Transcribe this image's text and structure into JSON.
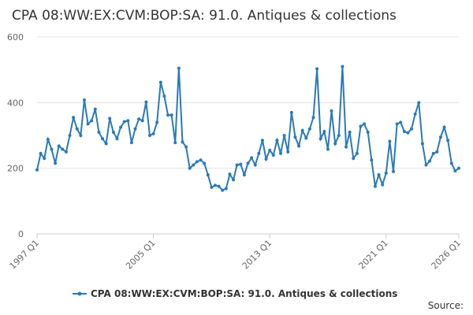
{
  "chart_data": {
    "type": "line",
    "title": "CPA 08:WW:EX:CVM:BOP:SA: 91.0. Antiques & collections",
    "source": "Source:",
    "categories": [
      "1997 Q1",
      null,
      null,
      null,
      null,
      null,
      null,
      null,
      null,
      null,
      null,
      null,
      null,
      null,
      null,
      null,
      null,
      null,
      null,
      null,
      null,
      null,
      null,
      null,
      null,
      null,
      null,
      null,
      null,
      null,
      null,
      null,
      "2005 Q1",
      null,
      null,
      null,
      null,
      null,
      null,
      null,
      null,
      null,
      null,
      null,
      null,
      null,
      null,
      null,
      null,
      null,
      null,
      null,
      null,
      null,
      null,
      null,
      null,
      null,
      null,
      null,
      null,
      null,
      null,
      null,
      "2013 Q1",
      null,
      null,
      null,
      null,
      null,
      null,
      null,
      null,
      null,
      null,
      null,
      null,
      null,
      null,
      null,
      null,
      null,
      null,
      null,
      null,
      null,
      null,
      null,
      null,
      null,
      null,
      null,
      null,
      null,
      null,
      null,
      "2021 Q1",
      null,
      null,
      null,
      null,
      null,
      null,
      null,
      null,
      null,
      null,
      null,
      null,
      null,
      null,
      null,
      null,
      null,
      null,
      null,
      "2026 Q1"
    ],
    "series": [
      {
        "name": "CPA 08:WW:EX:CVM:BOP:SA: 91.0. Antiques & collections",
        "color": "#2a7ab8",
        "values": [
          195,
          245,
          230,
          288,
          258,
          215,
          268,
          258,
          250,
          300,
          355,
          320,
          300,
          408,
          335,
          345,
          380,
          310,
          290,
          275,
          352,
          310,
          290,
          325,
          342,
          345,
          278,
          320,
          350,
          345,
          402,
          300,
          305,
          340,
          462,
          420,
          362,
          362,
          278,
          505,
          280,
          265,
          200,
          210,
          220,
          225,
          215,
          180,
          142,
          148,
          145,
          133,
          138,
          182,
          165,
          210,
          212,
          180,
          215,
          232,
          210,
          245,
          285,
          228,
          255,
          240,
          285,
          245,
          300,
          250,
          370,
          295,
          268,
          315,
          292,
          320,
          355,
          503,
          290,
          312,
          258,
          375,
          275,
          300,
          510,
          265,
          310,
          230,
          245,
          328,
          335,
          310,
          225,
          145,
          180,
          150,
          185,
          282,
          190,
          335,
          340,
          312,
          308,
          320,
          365,
          400,
          275,
          210,
          222,
          245,
          250,
          295,
          325,
          285,
          215,
          192,
          200
        ]
      }
    ],
    "ylim": [
      0,
      600
    ],
    "yticks": [
      0,
      200,
      400,
      600
    ],
    "grid": true
  }
}
